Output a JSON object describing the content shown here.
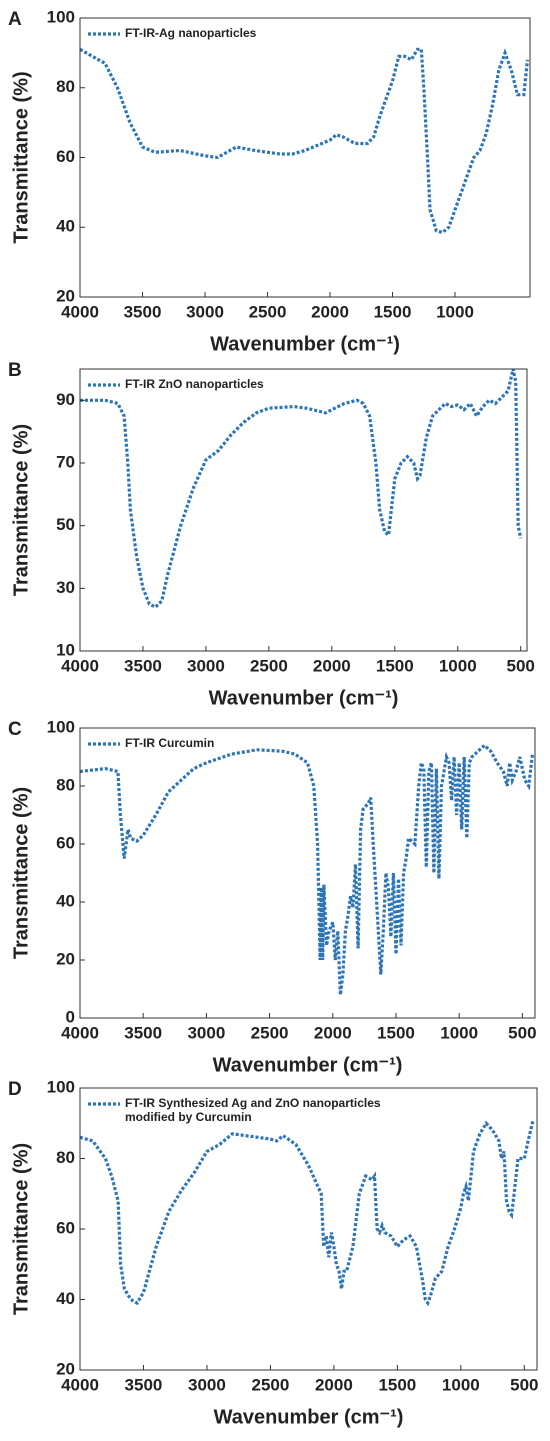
{
  "chart_data": [
    {
      "type": "line",
      "panel_label": "A",
      "xlabel": "Wavenumber (cm⁻¹)",
      "ylabel": "Transmittance (%)",
      "xlim": [
        4000,
        400
      ],
      "ylim": [
        20,
        100
      ],
      "xticks": [
        4000,
        3500,
        3000,
        2500,
        2000,
        1500,
        1000
      ],
      "yticks": [
        20,
        40,
        60,
        80,
        100
      ],
      "series": [
        {
          "name": "FT-IR-Ag nanoparticles",
          "color": "#2e75b6",
          "x": [
            4000,
            3900,
            3800,
            3700,
            3600,
            3500,
            3400,
            3200,
            3000,
            2900,
            2800,
            2750,
            2600,
            2400,
            2300,
            2200,
            2100,
            2000,
            1950,
            1900,
            1800,
            1700,
            1650,
            1600,
            1550,
            1500,
            1450,
            1400,
            1350,
            1300,
            1270,
            1250,
            1220,
            1200,
            1150,
            1100,
            1050,
            1000,
            950,
            900,
            850,
            800,
            750,
            700,
            650,
            600,
            550,
            500,
            450,
            420
          ],
          "values": [
            91,
            89,
            87,
            80,
            70,
            63,
            61.5,
            62,
            60.5,
            60,
            62,
            63,
            62,
            61,
            61,
            62,
            63.5,
            65,
            66.5,
            66,
            64,
            64,
            66,
            72,
            77,
            82,
            89,
            89,
            88,
            91,
            91,
            80,
            60,
            45,
            39,
            38.5,
            40,
            45,
            50,
            55,
            60,
            62,
            67,
            75,
            85,
            90,
            85,
            78,
            78,
            88
          ]
        }
      ]
    },
    {
      "type": "line",
      "panel_label": "B",
      "xlabel": "Wavenumber (cm⁻¹)",
      "ylabel": "Transmittance (%)",
      "xlim": [
        4000,
        450
      ],
      "ylim": [
        10,
        100
      ],
      "xticks": [
        4000,
        3500,
        3000,
        2500,
        2000,
        1500,
        1000,
        500
      ],
      "yticks": [
        10,
        30,
        50,
        70,
        90
      ],
      "series": [
        {
          "name": "FT-IR ZnO nanoparticles",
          "color": "#2e75b6",
          "x": [
            4000,
            3800,
            3700,
            3650,
            3620,
            3600,
            3550,
            3500,
            3450,
            3400,
            3350,
            3300,
            3200,
            3100,
            3000,
            2900,
            2800,
            2700,
            2600,
            2500,
            2300,
            2200,
            2100,
            2050,
            2000,
            1900,
            1800,
            1750,
            1700,
            1650,
            1620,
            1580,
            1550,
            1500,
            1450,
            1400,
            1350,
            1320,
            1300,
            1250,
            1200,
            1100,
            1050,
            1000,
            950,
            900,
            850,
            800,
            750,
            700,
            650,
            600,
            560,
            540,
            520,
            500
          ],
          "values": [
            90,
            90,
            89,
            85,
            70,
            55,
            40,
            30,
            25,
            24,
            26,
            35,
            50,
            62,
            71,
            74,
            79,
            83,
            86,
            87.5,
            88,
            87.5,
            86.5,
            86,
            87,
            89,
            90,
            89,
            85,
            70,
            55,
            48,
            47,
            65,
            70,
            72,
            70,
            65,
            66,
            78,
            85,
            89,
            88,
            88.5,
            87,
            89,
            85,
            88,
            90,
            89,
            91,
            93,
            100,
            96,
            50,
            46
          ]
        }
      ]
    },
    {
      "type": "line",
      "panel_label": "C",
      "xlabel": "Wavenumber (cm⁻¹)",
      "ylabel": "Transmittance (%)",
      "xlim": [
        4000,
        400
      ],
      "ylim": [
        0,
        100
      ],
      "xticks": [
        4000,
        3500,
        3000,
        2500,
        2000,
        1500,
        1000,
        500
      ],
      "yticks": [
        0,
        20,
        40,
        60,
        80,
        100
      ],
      "series": [
        {
          "name": "FT-IR Curcumin",
          "color": "#2e75b6",
          "x": [
            4000,
            3800,
            3700,
            3680,
            3650,
            3620,
            3600,
            3550,
            3500,
            3400,
            3300,
            3200,
            3100,
            3000,
            2800,
            2600,
            2400,
            2300,
            2200,
            2150,
            2120,
            2100,
            2090,
            2080,
            2070,
            2050,
            2030,
            2000,
            1980,
            1960,
            1940,
            1920,
            1900,
            1880,
            1860,
            1840,
            1820,
            1800,
            1780,
            1760,
            1720,
            1700,
            1680,
            1660,
            1640,
            1620,
            1600,
            1580,
            1560,
            1540,
            1520,
            1500,
            1480,
            1460,
            1440,
            1420,
            1400,
            1350,
            1320,
            1300,
            1280,
            1260,
            1240,
            1220,
            1200,
            1180,
            1160,
            1140,
            1120,
            1100,
            1080,
            1060,
            1040,
            1020,
            1000,
            980,
            960,
            940,
            920,
            900,
            850,
            800,
            750,
            700,
            650,
            620,
            600,
            580,
            550,
            520,
            480,
            450,
            420
          ],
          "values": [
            85,
            86,
            85,
            70,
            55,
            65,
            62,
            61,
            63,
            70,
            78,
            82,
            86,
            88,
            91,
            92.5,
            92,
            91,
            88,
            80,
            60,
            20,
            45,
            20,
            46,
            25,
            30,
            33,
            20,
            30,
            8,
            15,
            30,
            35,
            42,
            38,
            53,
            24,
            65,
            72,
            74,
            76,
            60,
            45,
            30,
            15,
            30,
            50,
            45,
            28,
            50,
            22,
            48,
            25,
            50,
            55,
            62,
            60,
            80,
            88,
            86,
            52,
            85,
            88,
            50,
            86,
            48,
            80,
            85,
            90,
            88,
            75,
            90,
            70,
            88,
            65,
            90,
            62,
            88,
            90,
            92,
            94,
            92,
            88,
            85,
            80,
            88,
            82,
            85,
            90,
            82,
            80,
            91
          ]
        }
      ]
    },
    {
      "type": "line",
      "panel_label": "D",
      "xlabel": "Wavenumber (cm⁻¹)",
      "ylabel": "Transmittance (%)",
      "xlim": [
        4000,
        400
      ],
      "ylim": [
        20,
        100
      ],
      "xticks": [
        4000,
        3500,
        3000,
        2500,
        2000,
        1500,
        1000,
        500
      ],
      "yticks": [
        20,
        40,
        60,
        80,
        100
      ],
      "series": [
        {
          "name": "FT-IR  Synthesized Ag and ZnO nanoparticles modified by Curcumin",
          "color": "#2e75b6",
          "x": [
            4000,
            3900,
            3800,
            3750,
            3700,
            3680,
            3650,
            3600,
            3550,
            3500,
            3400,
            3300,
            3200,
            3100,
            3000,
            2900,
            2800,
            2600,
            2500,
            2450,
            2400,
            2300,
            2200,
            2100,
            2080,
            2060,
            2040,
            2020,
            2000,
            1980,
            1960,
            1940,
            1920,
            1900,
            1850,
            1800,
            1750,
            1700,
            1680,
            1660,
            1640,
            1620,
            1600,
            1550,
            1500,
            1450,
            1400,
            1350,
            1300,
            1280,
            1260,
            1240,
            1200,
            1150,
            1100,
            1050,
            1000,
            980,
            960,
            940,
            920,
            900,
            850,
            800,
            750,
            700,
            680,
            660,
            640,
            620,
            600,
            580,
            550,
            500,
            470,
            430
          ],
          "values": [
            86,
            85,
            80,
            75,
            68,
            50,
            43,
            40,
            39,
            42,
            55,
            65,
            71,
            76,
            82,
            84,
            87,
            86,
            85.5,
            85,
            86.5,
            84,
            78,
            70,
            55,
            58,
            52,
            59,
            55,
            50,
            48,
            43,
            48,
            48,
            55,
            70,
            75,
            74,
            75,
            60,
            59,
            61,
            59,
            58,
            55,
            57,
            58,
            55,
            45,
            40,
            39,
            41,
            46,
            48,
            55,
            60,
            66,
            70,
            72,
            68,
            75,
            82,
            87,
            90,
            88,
            85,
            80,
            82,
            68,
            65,
            64,
            70,
            80,
            80,
            85,
            91
          ]
        }
      ]
    }
  ]
}
